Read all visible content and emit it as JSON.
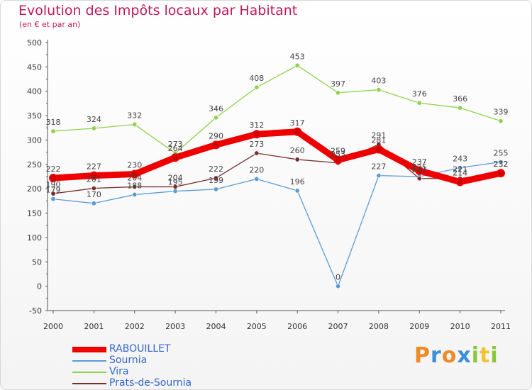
{
  "chart_data": {
    "type": "line",
    "title": "Evolution des Impôts locaux par Habitant",
    "subtitle": "(en € et par an)",
    "x": [
      "2000",
      "2001",
      "2002",
      "2003",
      "2004",
      "2005",
      "2006",
      "2007",
      "2008",
      "2009",
      "2010",
      "2011"
    ],
    "ylim": [
      -50,
      500
    ],
    "yticks": [
      -50,
      0,
      50,
      100,
      150,
      200,
      250,
      300,
      350,
      400,
      450,
      500
    ],
    "grid": false,
    "legend_position": "bottom-left",
    "series": [
      {
        "name": "RABOUILLET",
        "color": "#ee0000",
        "emphasis": "thick",
        "values": [
          222,
          227,
          230,
          264,
          290,
          312,
          317,
          259,
          281,
          237,
          214,
          232
        ],
        "labels": [
          "222",
          "227",
          "230",
          "264",
          "290",
          "312",
          "317",
          "259",
          "281",
          "237",
          "214",
          "232"
        ]
      },
      {
        "name": "Sournia",
        "color": "#5b9bd5",
        "emphasis": "thin",
        "values": [
          179,
          170,
          188,
          195,
          199,
          220,
          196,
          0,
          227,
          225,
          243,
          255
        ],
        "labels": [
          "179",
          "170",
          "188",
          "195",
          "199",
          "220",
          "196",
          "0",
          "227",
          "225",
          "243",
          "255"
        ]
      },
      {
        "name": "Vira",
        "color": "#8fd14f",
        "emphasis": "thin",
        "values": [
          318,
          324,
          332,
          273,
          346,
          408,
          453,
          397,
          403,
          376,
          366,
          339
        ],
        "labels": [
          "318",
          "324",
          "332",
          "273",
          "346",
          "408",
          "453",
          "397",
          "403",
          "376",
          "366",
          "339"
        ]
      },
      {
        "name": "Prats-de-Sournia",
        "color": "#7a2e2e",
        "emphasis": "thin",
        "values": [
          190,
          201,
          204,
          204,
          222,
          273,
          260,
          253,
          291,
          221,
          221,
          232
        ],
        "labels": [
          "190",
          "201",
          "204",
          "204",
          "222",
          "273",
          "260",
          "253",
          "291",
          "221",
          "221",
          "232"
        ]
      }
    ]
  },
  "logo": {
    "letters": [
      "P",
      "r",
      "o",
      "x",
      "i",
      "t",
      "i"
    ],
    "colors": [
      "#f08a24",
      "#3a8fd8",
      "#f08a24",
      "#3a8fd8",
      "#8cc63f",
      "#f2c230",
      "#8cc63f"
    ]
  }
}
